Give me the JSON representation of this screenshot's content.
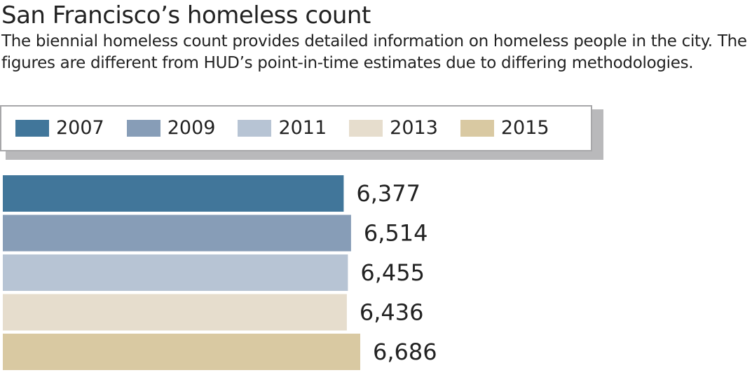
{
  "header": {
    "title": "San Francisco’s homeless count",
    "subtitle": "The biennial homeless count provides detailed information on homeless people in the city. The figures are different from HUD’s point-in-time estimates due to differing methodologies."
  },
  "legend": {
    "items": [
      {
        "label": "2007",
        "color": "#41769a"
      },
      {
        "label": "2009",
        "color": "#879db7"
      },
      {
        "label": "2011",
        "color": "#b7c4d4"
      },
      {
        "label": "2013",
        "color": "#e6ddcd"
      },
      {
        "label": "2015",
        "color": "#d9c9a2"
      }
    ]
  },
  "chart_data": {
    "type": "bar",
    "orientation": "horizontal",
    "title": "San Francisco’s homeless count",
    "categories": [
      "2007",
      "2009",
      "2011",
      "2013",
      "2015"
    ],
    "values": [
      6377,
      6514,
      6455,
      6436,
      6686
    ],
    "value_labels": [
      "6,377",
      "6,514",
      "6,455",
      "6,436",
      "6,686"
    ],
    "colors": [
      "#41769a",
      "#879db7",
      "#b7c4d4",
      "#e6ddcd",
      "#d9c9a2"
    ],
    "xlim": [
      0,
      6686
    ],
    "grid": false,
    "legend": "top"
  }
}
